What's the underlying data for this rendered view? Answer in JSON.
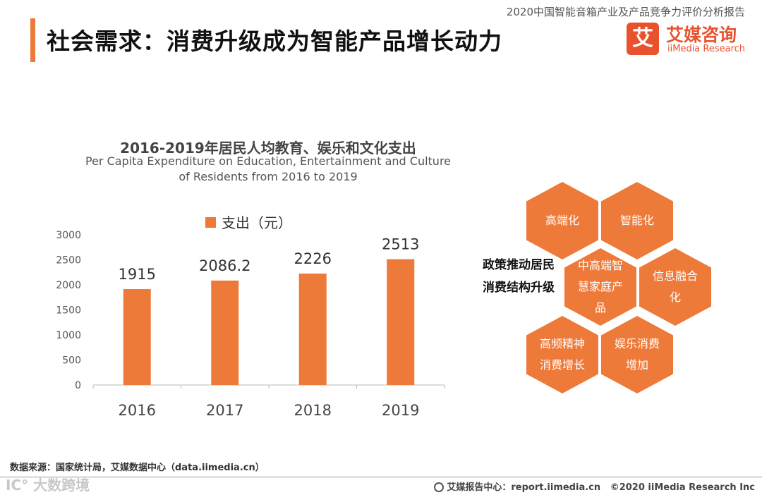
{
  "header": {
    "report_name": "2020中国智能音箱产业及产品竞争力评价分析报告",
    "page_title": "社会需求：消费升级成为智能产品增长动力",
    "logo_mark": "艾",
    "logo_cn": "艾媒咨询",
    "logo_en": "iiMedia Research"
  },
  "chart_data": {
    "type": "bar",
    "title": "2016-2019年居民人均教育、娱乐和文化支出",
    "subtitle_lines": [
      "Per Capita Expenditure on Education, Entertainment and Culture",
      "of Residents from 2016 to 2019"
    ],
    "categories": [
      "2016",
      "2017",
      "2018",
      "2019"
    ],
    "series": [
      {
        "name": "支出（元）",
        "values": [
          1915,
          2086.2,
          2226,
          2513
        ],
        "color": "#ee7a3a"
      }
    ],
    "data_labels": [
      "1915",
      "2086.2",
      "2226",
      "2513"
    ],
    "y_ticks": [
      "0",
      "500",
      "1000",
      "1500",
      "2000",
      "2500",
      "3000"
    ],
    "ylim": [
      0,
      3000
    ],
    "xlabel": "",
    "ylabel": "",
    "legend_position": "top",
    "grid": false
  },
  "diagram": {
    "center_label": "政策推动居民消费结构升级",
    "color": "#ee7a3a",
    "hexagons": [
      "高端化",
      "智能化",
      "中高端智慧家庭产品",
      "信息融合化",
      "高频精神消费增长",
      "娱乐消费增加"
    ]
  },
  "footer": {
    "source": "数据来源：国家统计局，艾媒数据中心（data.iimedia.cn）",
    "watermark": "IC° 大数跨境",
    "report_center": "艾媒报告中心：report.iimedia.cn",
    "copyright": "©2020  iiMedia Research  Inc"
  }
}
